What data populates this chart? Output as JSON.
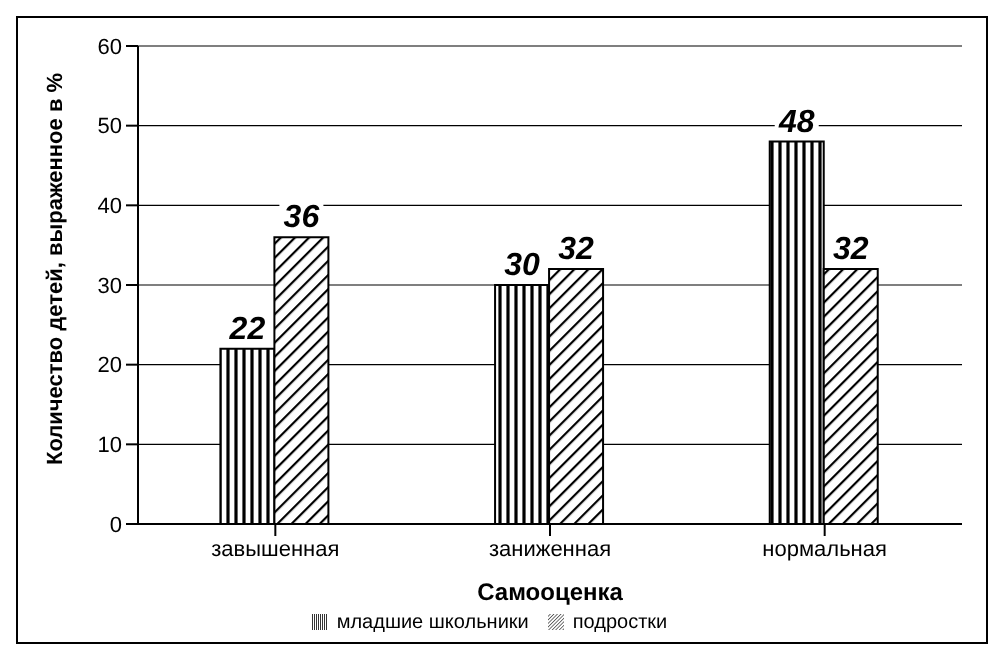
{
  "chart_data": {
    "type": "bar",
    "xlabel": "Самооценка",
    "ylabel": "Количество детей, выраженное в %",
    "categories": [
      "завышенная",
      "заниженная",
      "нормальная"
    ],
    "series": [
      {
        "name": "младшие школьники",
        "color": "#000000",
        "values": [
          22,
          30,
          48
        ]
      },
      {
        "name": "подростки",
        "color": "#000000",
        "values": [
          36,
          32,
          32
        ]
      }
    ],
    "ylim": [
      0,
      60
    ],
    "yticks": [
      0,
      10,
      20,
      30,
      40,
      50,
      60
    ],
    "grid": "y",
    "legend": "bottom",
    "data_labels": true
  }
}
